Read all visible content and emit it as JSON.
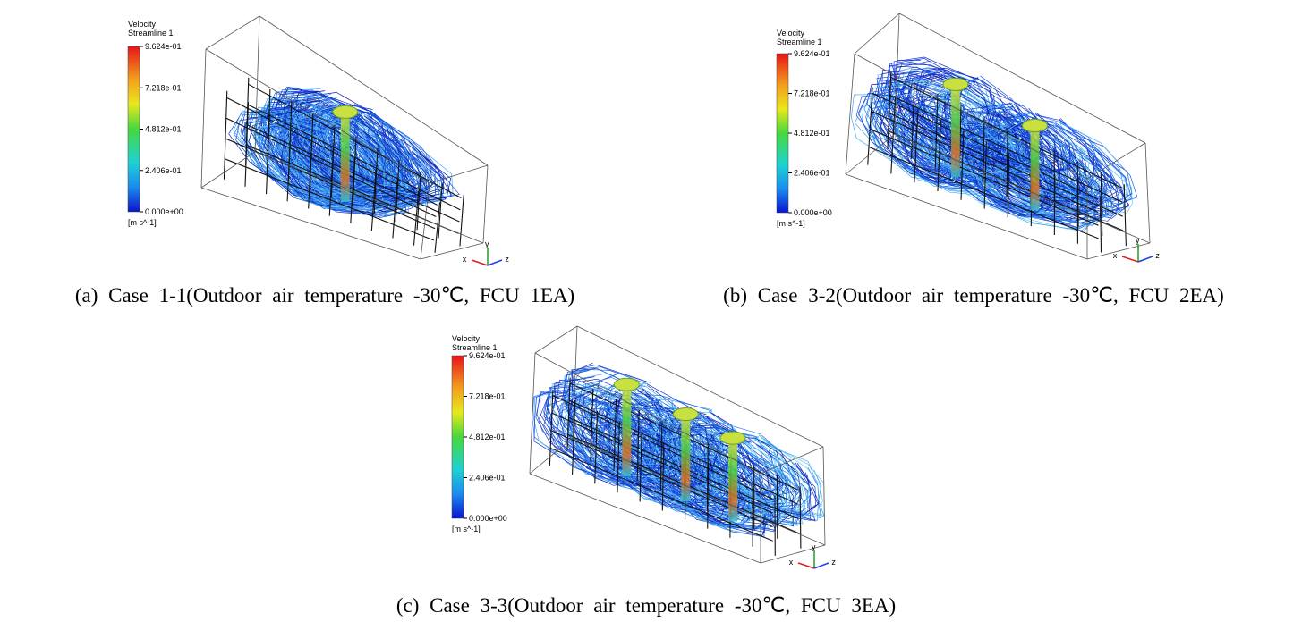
{
  "panels": [
    {
      "legend": {
        "title": "Velocity",
        "subtitle": "Streamline 1",
        "ticks": [
          "9.624e-01",
          "7.218e-01",
          "4.812e-01",
          "2.406e-01",
          "0.000e+00"
        ],
        "unit": "[m s^-1]"
      },
      "axes": [
        "x",
        "y",
        "z"
      ],
      "caption": "(a) Case 1-1(Outdoor air temperature -30℃, FCU 1EA)"
    },
    {
      "legend": {
        "title": "Velocity",
        "subtitle": "Streamline 1",
        "ticks": [
          "9.624e-01",
          "7.218e-01",
          "4.812e-01",
          "2.406e-01",
          "0.000e+00"
        ],
        "unit": "[m s^-1]"
      },
      "axes": [
        "x",
        "y",
        "z"
      ],
      "caption": "(b) Case 3-2(Outdoor air temperature -30℃, FCU 2EA)"
    },
    {
      "legend": {
        "title": "Velocity",
        "subtitle": "Streamline 1",
        "ticks": [
          "9.624e-01",
          "7.218e-01",
          "4.812e-01",
          "2.406e-01",
          "0.000e+00"
        ],
        "unit": "[m s^-1]"
      },
      "axes": [
        "x",
        "y",
        "z"
      ],
      "caption": "(c) Case 3-3(Outdoor air temperature -30℃, FCU 3EA)"
    }
  ]
}
